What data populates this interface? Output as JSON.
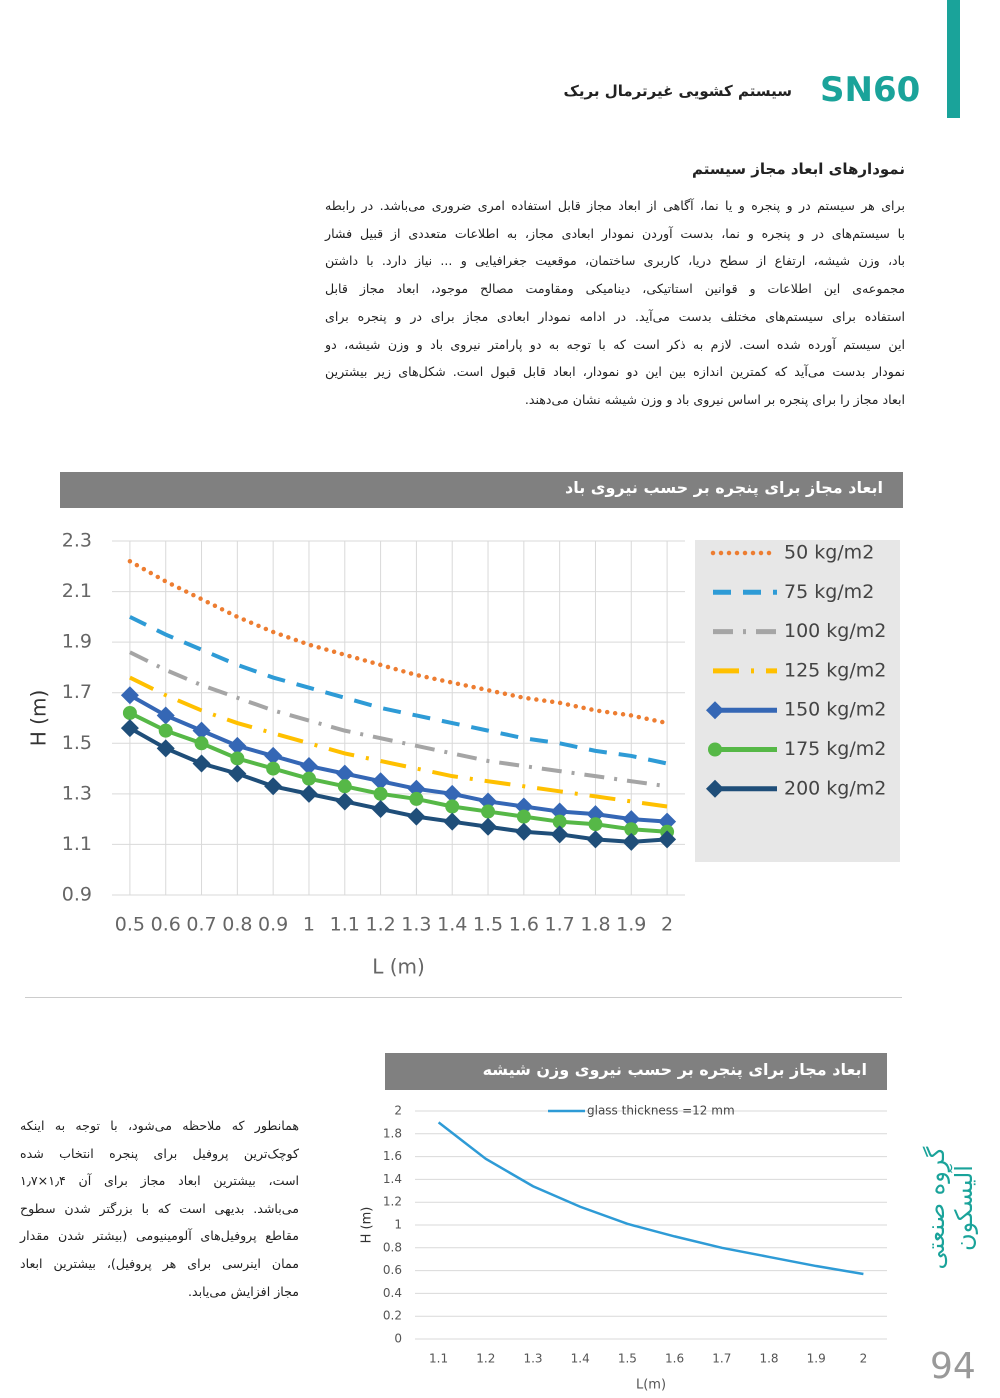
{
  "header": {
    "code": "SN60",
    "title": "سیستم کشویی غیرترمال بریک"
  },
  "section": {
    "title": "نمودارهای ابعاد مجاز سیستم",
    "lines": [
      "برای هر سیستم در و پنجره و یا نما، آگاهی از ابعاد مجاز قابل استفاده امری ضروری می‌باشد. در رابطه",
      "با سیستم‌های در و پنجره و نما، بدست آوردن نمودار ابعادی مجاز، به اطلاعات متعددی از قبیل فشار",
      "باد، وزن شیشه، ارتفاع از سطح دریا، کاربری ساختمان، موقعیت جغرافیایی و ... نیاز دارد. با داشتن",
      "مجموعه‌ی این اطلاعات و قوانین استاتیکی، دینامیکی ومقاومت مصالح موجود، ابعاد مجاز قابل",
      "استفاده برای سیستم‌های مختلف بدست می‌آید. در ادامه نمودار ابعادی مجاز برای در و پنجره برای",
      "این سیستم آورده شده است. لازم به ذکر است که با توجه به دو پارامتر نیروی باد و وزن شیشه، دو",
      "نمودار بدست می‌آید که کمترین اندازه بین این دو نمودار، ابعاد قابل قبول است. شکل‌های زیر بیشترین",
      "ابعاد مجاز را برای پنجره بر اساس نیروی باد و وزن شیشه نشان می‌دهند."
    ]
  },
  "note": {
    "lines": [
      "همانطور که ملاحظه می‌شود، با توجه به اینکه",
      "کوچک‌ترین پروفیل برای پنجره انتخاب شده",
      "است، بیشترین ابعاد مجاز برای آن ۱٫۴×۱٫۷",
      "می‌باشد. بدیهی است که با بزرگتر شدن سطوح",
      "مقاطع پروفیل‌های آلومینیومی (بیشتر شدن مقدار",
      "ممان اینرسی برای هر پروفیل)، بیشترین ابعاد",
      "مجاز افزایش می‌یابد."
    ]
  },
  "brand": "گروه صنعتی آلیسکون",
  "page_number": "94",
  "chart_data": [
    {
      "type": "line",
      "title": "ابعاد مجاز برای پنجره بر حسب نیروی باد",
      "x_label": "L (m)",
      "y_label": "H (m)",
      "x": [
        0.5,
        0.6,
        0.7,
        0.8,
        0.9,
        1,
        1.1,
        1.2,
        1.3,
        1.4,
        1.5,
        1.6,
        1.7,
        1.8,
        1.9,
        2
      ],
      "xlim": [
        0.45,
        2.05
      ],
      "xticks": [
        0.5,
        0.6,
        0.7,
        0.8,
        0.9,
        1,
        1.1,
        1.2,
        1.3,
        1.4,
        1.5,
        1.6,
        1.7,
        1.8,
        1.9,
        2
      ],
      "ylim": [
        0.9,
        2.3
      ],
      "yticks": [
        0.9,
        1.1,
        1.3,
        1.5,
        1.7,
        1.9,
        2.1,
        2.3
      ],
      "grid": true,
      "legend": "right",
      "series": [
        {
          "name": "50 kg/m2",
          "color": "#ed7d31",
          "dash": "dot",
          "values": [
            2.22,
            2.14,
            2.07,
            2.0,
            1.94,
            1.89,
            1.85,
            1.81,
            1.77,
            1.74,
            1.71,
            1.68,
            1.66,
            1.63,
            1.61,
            1.58
          ]
        },
        {
          "name": "75 kg/m2",
          "color": "#2e9bd6",
          "dash": "dash",
          "values": [
            2.0,
            1.93,
            1.87,
            1.81,
            1.76,
            1.72,
            1.68,
            1.64,
            1.61,
            1.58,
            1.55,
            1.52,
            1.5,
            1.47,
            1.45,
            1.42
          ]
        },
        {
          "name": "100 kg/m2",
          "color": "#a5a5a5",
          "dash": "dashdot",
          "values": [
            1.86,
            1.79,
            1.73,
            1.68,
            1.63,
            1.59,
            1.55,
            1.52,
            1.49,
            1.46,
            1.43,
            1.41,
            1.39,
            1.37,
            1.35,
            1.33
          ]
        },
        {
          "name": "125 kg/m2",
          "color": "#ffc000",
          "dash": "longdashdot",
          "values": [
            1.76,
            1.69,
            1.63,
            1.58,
            1.54,
            1.5,
            1.46,
            1.43,
            1.4,
            1.37,
            1.35,
            1.33,
            1.31,
            1.29,
            1.27,
            1.25
          ]
        },
        {
          "name": "150 kg/m2",
          "color": "#3567b5",
          "dash": "solid",
          "marker": "diamond",
          "values": [
            1.69,
            1.61,
            1.55,
            1.49,
            1.45,
            1.41,
            1.38,
            1.35,
            1.32,
            1.3,
            1.27,
            1.25,
            1.23,
            1.22,
            1.2,
            1.19
          ]
        },
        {
          "name": "175 kg/m2",
          "color": "#56b847",
          "dash": "solid",
          "marker": "circle",
          "values": [
            1.62,
            1.55,
            1.5,
            1.44,
            1.4,
            1.36,
            1.33,
            1.3,
            1.28,
            1.25,
            1.23,
            1.21,
            1.19,
            1.18,
            1.16,
            1.15
          ]
        },
        {
          "name": "200 kg/m2",
          "color": "#1f4e79",
          "dash": "solid",
          "marker": "diamond",
          "values": [
            1.56,
            1.48,
            1.42,
            1.38,
            1.33,
            1.3,
            1.27,
            1.24,
            1.21,
            1.19,
            1.17,
            1.15,
            1.14,
            1.12,
            1.11,
            1.12
          ]
        }
      ]
    },
    {
      "type": "line",
      "title": "ابعاد مجاز برای پنجره بر حسب نیروی وزن شیشه",
      "x_label": "L(m)",
      "y_label": "H (m)",
      "x": [
        1.1,
        1.2,
        1.3,
        1.4,
        1.5,
        1.6,
        1.7,
        1.8,
        1.9,
        2
      ],
      "xlim": [
        1.05,
        2.05
      ],
      "xticks": [
        1.1,
        1.2,
        1.3,
        1.4,
        1.5,
        1.6,
        1.7,
        1.8,
        1.9,
        2
      ],
      "ylim": [
        0,
        2
      ],
      "yticks": [
        0,
        0.2,
        0.4,
        0.6,
        0.8,
        1,
        1.2,
        1.4,
        1.6,
        1.8,
        2
      ],
      "grid": true,
      "legend": "top",
      "series": [
        {
          "name": "glass thickness =12 mm",
          "color": "#2e9bd6",
          "dash": "solid",
          "values": [
            1.9,
            1.58,
            1.34,
            1.16,
            1.01,
            0.9,
            0.8,
            0.72,
            0.64,
            0.57
          ]
        }
      ]
    }
  ]
}
